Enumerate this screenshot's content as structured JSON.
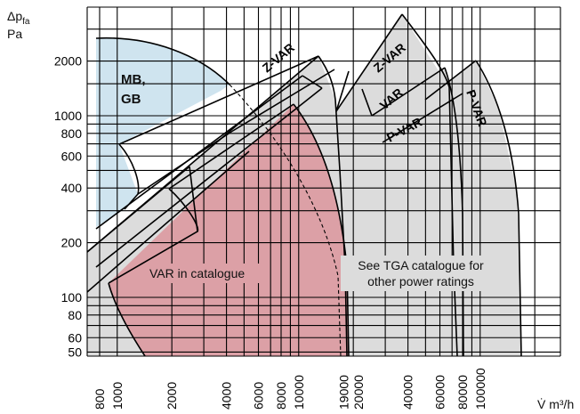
{
  "chart_data": {
    "type": "area",
    "title": "",
    "ylabel_symbol": "Δp",
    "ylabel_subscript": "fa",
    "yunit": "Pa",
    "xlabel": "V̇ m³/h",
    "scale": "log-log",
    "grid": true,
    "xlim": [
      700,
      200000
    ],
    "ylim": [
      50,
      4000
    ],
    "x_ticks": [
      800,
      1000,
      2000,
      4000,
      6000,
      8000,
      10000,
      19000,
      20000,
      40000,
      60000,
      80000,
      100000
    ],
    "x_tick_labels": [
      "800",
      "1000",
      "2000",
      "4000",
      "6000",
      "8000",
      "10000",
      "19000",
      "20000",
      "40000",
      "60000",
      "80000",
      "100000"
    ],
    "y_ticks": [
      50,
      60,
      80,
      100,
      200,
      400,
      600,
      800,
      1000,
      2000
    ],
    "y_tick_labels": [
      "50",
      "60",
      "80",
      "100",
      "200",
      "400",
      "600",
      "800",
      "1000",
      "2000"
    ],
    "regions": [
      {
        "name": "MB, GB",
        "fill": "#cfe4ef",
        "outline": [
          [
            700,
            300
          ],
          [
            1000,
            250
          ],
          [
            1300,
            380
          ],
          [
            1800,
            3000
          ],
          [
            700,
            3000
          ]
        ]
      },
      {
        "name": "Z-VAR",
        "fill": "#dcdcdc",
        "outline": [
          [
            700,
            300
          ],
          [
            14000,
            3700
          ],
          [
            16000,
            2500
          ],
          [
            19000,
            1300
          ],
          [
            21000,
            250
          ],
          [
            22000,
            50
          ],
          [
            700,
            50
          ]
        ]
      },
      {
        "name": "Z-VAR",
        "fill": "#dcdcdc",
        "outline": [
          [
            17000,
            1100
          ],
          [
            37000,
            3700
          ],
          [
            47000,
            1800
          ],
          [
            58000,
            850
          ],
          [
            66000,
            50
          ],
          [
            21000,
            50
          ]
        ]
      },
      {
        "name": "VAR",
        "fill": "#dcdcdc",
        "outline": [
          [
            28000,
            1000
          ],
          [
            58000,
            2000
          ],
          [
            70000,
            900
          ],
          [
            82000,
            50
          ],
          [
            60000,
            50
          ]
        ]
      },
      {
        "name": "P-VAR",
        "fill": "#dcdcdc",
        "outline": [
          [
            80000,
            2100
          ],
          [
            95000,
            1600
          ],
          [
            130000,
            1000
          ],
          [
            155000,
            50
          ],
          [
            85000,
            50
          ]
        ]
      },
      {
        "name": "VAR in catalogue",
        "fill": "#dca0a6",
        "outline": [
          [
            800,
            110
          ],
          [
            14000,
            1400
          ],
          [
            17000,
            650
          ],
          [
            20000,
            200
          ],
          [
            21000,
            50
          ],
          [
            3500,
            50
          ]
        ]
      }
    ],
    "annotations": {
      "mb_gb": "MB,\nGB",
      "z_var_1": "Z-VAR",
      "z_var_2": "Z-VAR",
      "var": "VAR",
      "p_var_1": "P-VAR",
      "p_var_2": "P-VAR",
      "var_in_catalogue": "VAR in catalogue",
      "tga_note": "See TGA catalogue for\nother power ratings"
    },
    "colors": {
      "mb_gb": "#cfe4ef",
      "gray": "#dcdcdc",
      "var_catalogue": "#dca0a6",
      "grid": "#000000"
    }
  }
}
